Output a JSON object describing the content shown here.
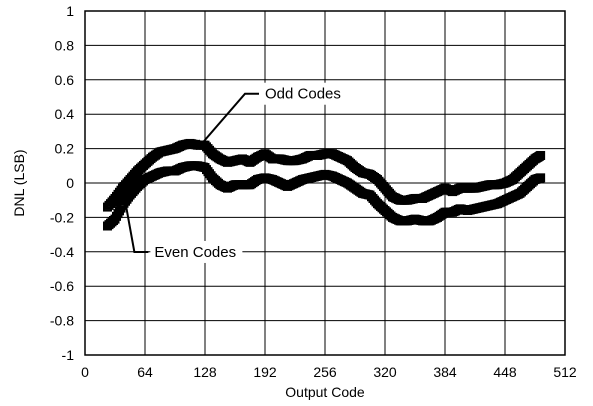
{
  "chart_data": {
    "type": "scatter",
    "xlabel": "Output Code",
    "ylabel": "DNL (LSB)",
    "xlim": [
      0,
      512
    ],
    "ylim": [
      -1,
      1
    ],
    "xticks": [
      0,
      64,
      128,
      192,
      256,
      320,
      384,
      448,
      512
    ],
    "yticks": [
      -1,
      -0.8,
      -0.6,
      -0.4,
      -0.2,
      0,
      0.2,
      0.4,
      0.6,
      0.8,
      1
    ],
    "xtick_labels": [
      "0",
      "64",
      "128",
      "192",
      "256",
      "320",
      "384",
      "448",
      "512"
    ],
    "ytick_labels": [
      "-1",
      "-0.8",
      "-0.6",
      "-0.4",
      "-0.2",
      "0",
      "0.2",
      "0.4",
      "0.6",
      "0.8",
      "1"
    ],
    "grid": true,
    "series": [
      {
        "name": "Odd Codes",
        "x": [
          24,
          32,
          40,
          48,
          56,
          64,
          72,
          80,
          88,
          96,
          104,
          112,
          120,
          128,
          136,
          144,
          152,
          160,
          168,
          176,
          184,
          192,
          200,
          208,
          216,
          224,
          232,
          240,
          248,
          256,
          264,
          272,
          280,
          288,
          296,
          304,
          312,
          320,
          328,
          336,
          344,
          352,
          360,
          368,
          376,
          384,
          392,
          400,
          408,
          416,
          424,
          432,
          440,
          448,
          456,
          464,
          472,
          480,
          486
        ],
        "y": [
          -0.14,
          -0.09,
          -0.03,
          0.02,
          0.07,
          0.11,
          0.15,
          0.18,
          0.19,
          0.2,
          0.22,
          0.23,
          0.22,
          0.22,
          0.17,
          0.14,
          0.12,
          0.13,
          0.14,
          0.12,
          0.15,
          0.17,
          0.14,
          0.14,
          0.13,
          0.13,
          0.14,
          0.16,
          0.16,
          0.17,
          0.17,
          0.15,
          0.13,
          0.09,
          0.06,
          0.05,
          0.02,
          -0.03,
          -0.08,
          -0.1,
          -0.1,
          -0.09,
          -0.09,
          -0.07,
          -0.05,
          -0.03,
          -0.05,
          -0.03,
          -0.03,
          -0.03,
          -0.02,
          -0.01,
          -0.01,
          0.0,
          0.02,
          0.06,
          0.1,
          0.14,
          0.16
        ]
      },
      {
        "name": "Even Codes",
        "x": [
          24,
          32,
          40,
          48,
          56,
          64,
          72,
          80,
          88,
          96,
          104,
          112,
          120,
          128,
          136,
          144,
          152,
          160,
          168,
          176,
          184,
          192,
          200,
          208,
          216,
          224,
          232,
          240,
          248,
          256,
          264,
          272,
          280,
          288,
          296,
          304,
          312,
          320,
          328,
          336,
          344,
          352,
          360,
          368,
          376,
          384,
          392,
          400,
          408,
          416,
          424,
          432,
          440,
          448,
          456,
          464,
          472,
          480,
          486
        ],
        "y": [
          -0.25,
          -0.21,
          -0.13,
          -0.07,
          -0.02,
          0.02,
          0.04,
          0.06,
          0.07,
          0.07,
          0.09,
          0.1,
          0.1,
          0.09,
          0.03,
          -0.01,
          -0.03,
          -0.01,
          -0.01,
          -0.01,
          0.02,
          0.03,
          0.02,
          0.0,
          -0.02,
          0.0,
          0.02,
          0.03,
          0.04,
          0.05,
          0.04,
          0.02,
          0.0,
          -0.03,
          -0.06,
          -0.07,
          -0.12,
          -0.16,
          -0.2,
          -0.22,
          -0.22,
          -0.21,
          -0.22,
          -0.22,
          -0.2,
          -0.17,
          -0.17,
          -0.15,
          -0.16,
          -0.15,
          -0.14,
          -0.13,
          -0.12,
          -0.1,
          -0.08,
          -0.06,
          -0.02,
          0.02,
          0.03
        ]
      }
    ],
    "annotations": [
      {
        "text": "Odd Codes",
        "points_to": [
          120,
          0.2
        ],
        "anchor": [
          192,
          0.49
        ]
      },
      {
        "text": "Even Codes",
        "points_to": [
          42,
          -0.08
        ],
        "anchor": [
          74,
          -0.43
        ]
      }
    ]
  }
}
